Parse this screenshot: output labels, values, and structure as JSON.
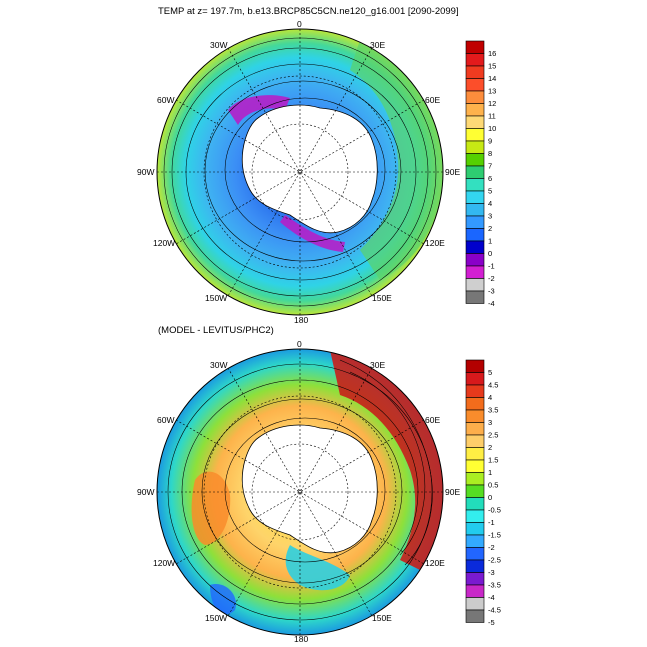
{
  "panel_top": {
    "title": "TEMP at z= 197.7m, b.e13.BRCP85C5CN.ne120_g16.001 [2090-2099]",
    "lon_labels": [
      "0",
      "30E",
      "60E",
      "90E",
      "120E",
      "150E",
      "180",
      "150W",
      "120W",
      "90W",
      "60W",
      "30W"
    ],
    "colorbar": {
      "labels": [
        "16",
        "15",
        "14",
        "13",
        "12",
        "11",
        "10",
        "9",
        "8",
        "7",
        "6",
        "5",
        "4",
        "3",
        "2",
        "1",
        "0",
        "-1",
        "-2",
        "-3",
        "-4"
      ],
      "colors": [
        "#c00000",
        "#e31a1c",
        "#f03b20",
        "#fc4e2a",
        "#fd8d3c",
        "#feb24c",
        "#fed976",
        "#ffff33",
        "#c7e914",
        "#55d000",
        "#2ecc71",
        "#33e0c0",
        "#33d6f0",
        "#33b8f0",
        "#3399ff",
        "#1a66ff",
        "#0000cc",
        "#8a00c8",
        "#d21fd2",
        "#cfcfcf",
        "#777777"
      ]
    }
  },
  "panel_bottom": {
    "title": "(MODEL - LEVITUS/PHC2)",
    "lon_labels": [
      "0",
      "30E",
      "60E",
      "90E",
      "120E",
      "150E",
      "180",
      "150W",
      "120W",
      "90W",
      "60W",
      "30W"
    ],
    "colorbar": {
      "labels": [
        "5",
        "4.5",
        "4",
        "3.5",
        "3",
        "2.5",
        "2",
        "1.5",
        "1",
        "0.5",
        "0",
        "-0.5",
        "-1",
        "-1.5",
        "-2",
        "-2.5",
        "-3",
        "-3.5",
        "-4",
        "-4.5",
        "-5"
      ],
      "colors": [
        "#b30000",
        "#d7191c",
        "#e63a1c",
        "#f26c1c",
        "#f98c2c",
        "#fdae4b",
        "#fece6a",
        "#ffee44",
        "#ffff33",
        "#aaee22",
        "#55dd22",
        "#22ddbb",
        "#33eeee",
        "#22ccee",
        "#33aaff",
        "#2266ff",
        "#0a2adb",
        "#7a1ad0",
        "#c828c8",
        "#cccccc",
        "#777777"
      ]
    }
  }
}
